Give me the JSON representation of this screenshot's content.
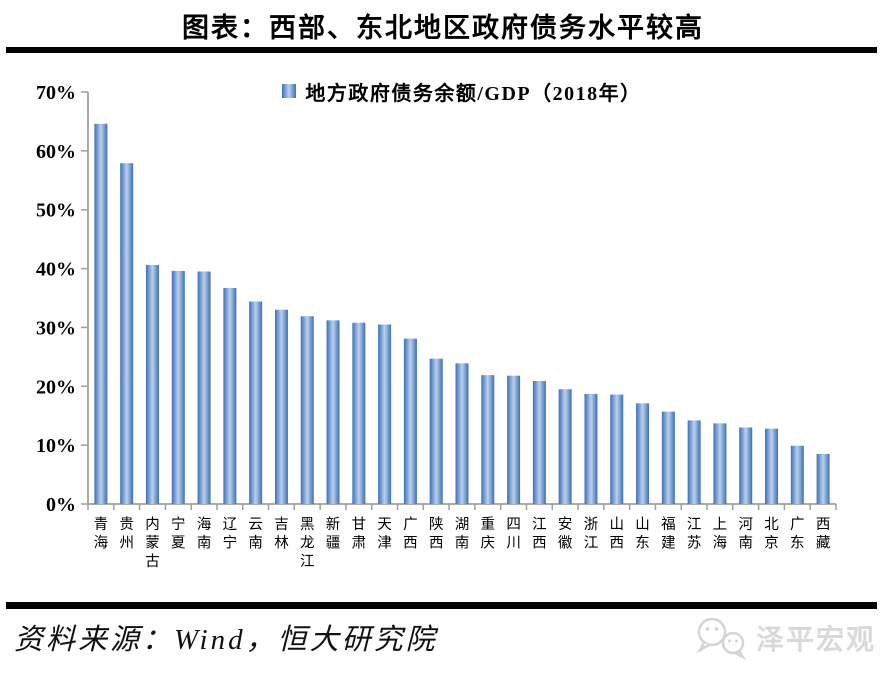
{
  "header": {
    "title": "图表：西部、东北地区政府债务水平较高"
  },
  "chart_data": {
    "type": "bar",
    "title": "图表：西部、东北地区政府债务水平较高",
    "legend": "地方政府债务余额/GDP（2018年）",
    "legend_position": "top-center",
    "grid": false,
    "xlabel": "",
    "ylabel": "",
    "ylim": [
      0,
      70
    ],
    "yticks": [
      0,
      10,
      20,
      30,
      40,
      50,
      60,
      70
    ],
    "ytick_labels": [
      "0%",
      "10%",
      "20%",
      "30%",
      "40%",
      "50%",
      "60%",
      "70%"
    ],
    "categories": [
      "青海",
      "贵州",
      "内蒙古",
      "宁夏",
      "海南",
      "辽宁",
      "云南",
      "吉林",
      "黑龙江",
      "新疆",
      "甘肃",
      "天津",
      "广西",
      "陕西",
      "湖南",
      "重庆",
      "四川",
      "江西",
      "安徽",
      "浙江",
      "山西",
      "山东",
      "福建",
      "江苏",
      "上海",
      "河南",
      "北京",
      "广东",
      "西藏"
    ],
    "values": [
      64.6,
      57.9,
      40.6,
      39.6,
      39.5,
      36.7,
      34.4,
      33.0,
      31.9,
      31.2,
      30.8,
      30.5,
      28.1,
      24.7,
      23.9,
      21.9,
      21.8,
      20.9,
      19.5,
      18.7,
      18.6,
      17.1,
      15.7,
      14.2,
      13.7,
      13.0,
      12.8,
      9.9,
      8.5
    ],
    "colors": {
      "bar_edge": "#3a70bb",
      "bar_mid": "#9db9e0",
      "bar_center": "#bcd0ea",
      "axis": "#9e9e9e",
      "text": "#000000"
    }
  },
  "footer": {
    "source": "资料来源：Wind，恒大研究院",
    "brand": "泽平宏观",
    "brand_color": "#d9d9d9"
  }
}
